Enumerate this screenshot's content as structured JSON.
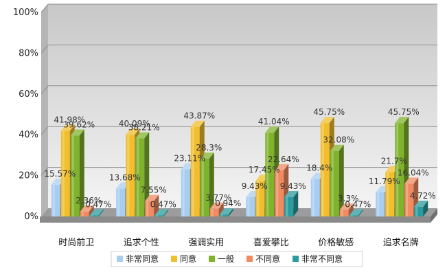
{
  "chart_data": {
    "type": "bar",
    "title": "",
    "xlabel": "",
    "ylabel": "",
    "ylim": [
      0,
      100
    ],
    "yticks": [
      0,
      20,
      40,
      60,
      80,
      100
    ],
    "ytick_labels": [
      "0%",
      "20%",
      "40%",
      "60%",
      "80%",
      "100%"
    ],
    "grid": true,
    "legend_position": "bottom",
    "categories": [
      "时尚前卫",
      "追求个性",
      "强调实用",
      "喜爱攀比",
      "价格敏感",
      "追求名牌"
    ],
    "series": [
      {
        "name": "非常同意",
        "color": "#a9cdf0",
        "values": [
          15.57,
          13.68,
          23.11,
          9.43,
          18.4,
          11.79
        ],
        "labels": [
          "15.57%",
          "13.68%",
          "23.11%",
          "9.43%",
          "18.4%",
          "11.79%"
        ]
      },
      {
        "name": "同意",
        "color": "#f2be2e",
        "values": [
          41.98,
          40.09,
          43.87,
          17.45,
          45.75,
          21.7
        ],
        "labels": [
          "41.98%",
          "40.09%",
          "43.87%",
          "17.45%",
          "45.75%",
          "21.7%"
        ]
      },
      {
        "name": "一般",
        "color": "#7fb32c",
        "values": [
          39.62,
          38.21,
          28.3,
          41.04,
          32.08,
          45.75
        ],
        "labels": [
          "39.62%",
          "38.21%",
          "28.3%",
          "41.04%",
          "32.08%",
          "45.75%"
        ]
      },
      {
        "name": "不同意",
        "color": "#f08a60",
        "values": [
          2.36,
          7.55,
          3.77,
          22.64,
          3.3,
          16.04
        ],
        "labels": [
          "2.36%",
          "7.55%",
          "3.77%",
          "22.64%",
          "3.3%",
          "16.04%"
        ]
      },
      {
        "name": "非常不同意",
        "color": "#2a9b9e",
        "values": [
          0.47,
          0.47,
          0.94,
          9.43,
          0.47,
          4.72
        ],
        "labels": [
          "0.47%",
          "0.47%",
          "0.94%",
          "9.43%",
          "0.47%",
          "4.72%"
        ]
      }
    ]
  }
}
